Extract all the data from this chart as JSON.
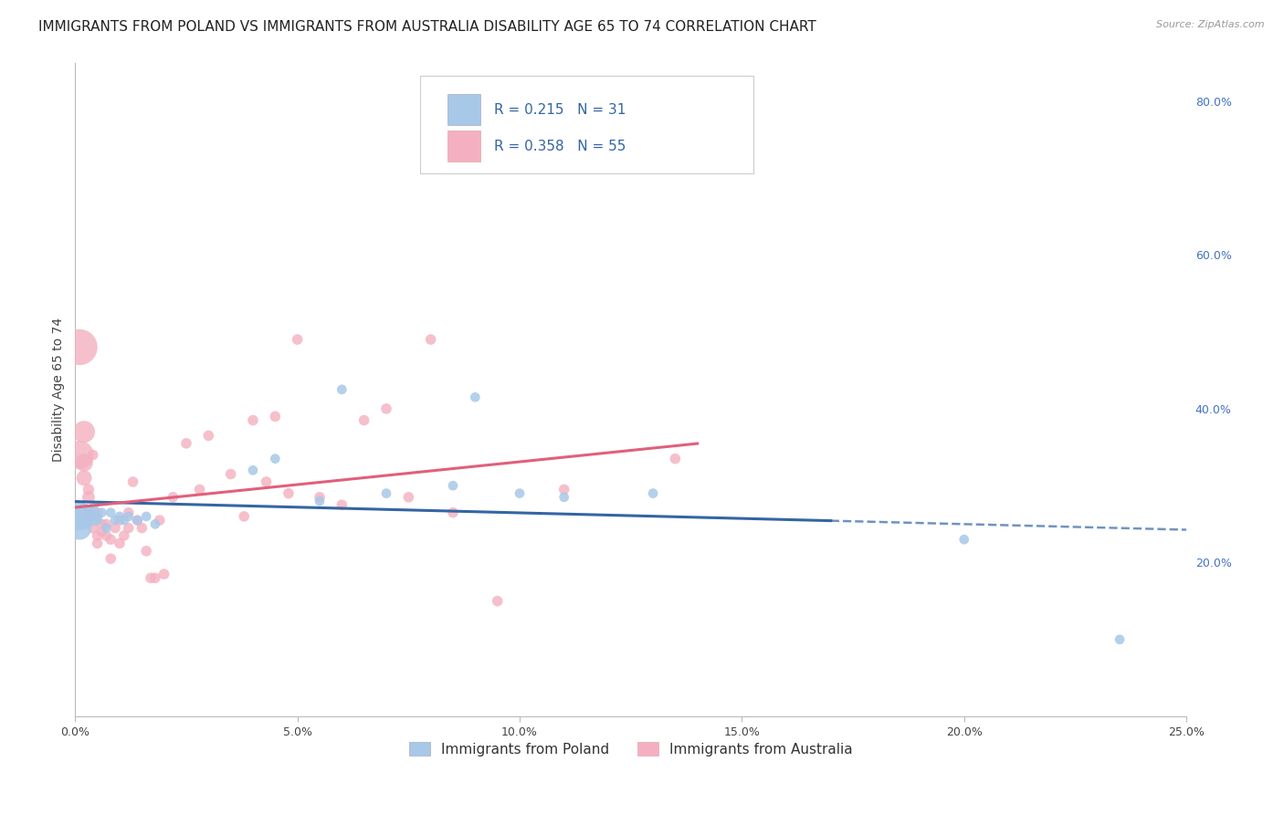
{
  "title": "IMMIGRANTS FROM POLAND VS IMMIGRANTS FROM AUSTRALIA DISABILITY AGE 65 TO 74 CORRELATION CHART",
  "source": "Source: ZipAtlas.com",
  "ylabel": "Disability Age 65 to 74",
  "xlim": [
    0,
    0.25
  ],
  "ylim": [
    0,
    0.85
  ],
  "xticks": [
    0.0,
    0.05,
    0.1,
    0.15,
    0.2,
    0.25
  ],
  "xticklabels": [
    "0.0%",
    "5.0%",
    "10.0%",
    "15.0%",
    "20.0%",
    "25.0%"
  ],
  "yticks_right": [
    0.2,
    0.4,
    0.6,
    0.8
  ],
  "yticklabels_right": [
    "20.0%",
    "40.0%",
    "60.0%",
    "80.0%"
  ],
  "poland_color": "#a8c8e8",
  "poland_line_color": "#3465a4",
  "australia_color": "#f4b0c0",
  "australia_line_color": "#e0607a",
  "legend_poland_label": "Immigrants from Poland",
  "legend_australia_label": "Immigrants from Australia",
  "R_poland": 0.215,
  "N_poland": 31,
  "R_australia": 0.358,
  "N_australia": 55,
  "poland_x": [
    0.001,
    0.001,
    0.002,
    0.002,
    0.003,
    0.004,
    0.004,
    0.005,
    0.005,
    0.006,
    0.007,
    0.008,
    0.009,
    0.01,
    0.011,
    0.012,
    0.014,
    0.016,
    0.018,
    0.04,
    0.045,
    0.055,
    0.06,
    0.07,
    0.085,
    0.09,
    0.1,
    0.11,
    0.13,
    0.2,
    0.235
  ],
  "poland_y": [
    0.26,
    0.245,
    0.265,
    0.255,
    0.265,
    0.255,
    0.27,
    0.255,
    0.26,
    0.265,
    0.245,
    0.265,
    0.255,
    0.26,
    0.255,
    0.26,
    0.255,
    0.26,
    0.25,
    0.32,
    0.335,
    0.28,
    0.425,
    0.29,
    0.3,
    0.415,
    0.29,
    0.285,
    0.29,
    0.23,
    0.1
  ],
  "poland_sizes": [
    500,
    350,
    200,
    150,
    100,
    80,
    80,
    60,
    60,
    60,
    60,
    60,
    60,
    60,
    60,
    60,
    60,
    60,
    60,
    60,
    60,
    60,
    60,
    60,
    60,
    60,
    60,
    60,
    60,
    60,
    60
  ],
  "australia_x": [
    0.001,
    0.001,
    0.002,
    0.002,
    0.002,
    0.003,
    0.003,
    0.003,
    0.004,
    0.004,
    0.004,
    0.005,
    0.005,
    0.005,
    0.006,
    0.006,
    0.007,
    0.007,
    0.008,
    0.008,
    0.009,
    0.01,
    0.01,
    0.011,
    0.012,
    0.012,
    0.013,
    0.014,
    0.015,
    0.016,
    0.017,
    0.018,
    0.019,
    0.02,
    0.022,
    0.025,
    0.028,
    0.03,
    0.035,
    0.038,
    0.04,
    0.043,
    0.045,
    0.048,
    0.05,
    0.055,
    0.06,
    0.065,
    0.07,
    0.075,
    0.08,
    0.085,
    0.095,
    0.11,
    0.135
  ],
  "australia_y": [
    0.48,
    0.34,
    0.37,
    0.33,
    0.31,
    0.26,
    0.285,
    0.295,
    0.245,
    0.265,
    0.34,
    0.235,
    0.225,
    0.265,
    0.24,
    0.25,
    0.235,
    0.25,
    0.23,
    0.205,
    0.245,
    0.255,
    0.225,
    0.235,
    0.265,
    0.245,
    0.305,
    0.255,
    0.245,
    0.215,
    0.18,
    0.18,
    0.255,
    0.185,
    0.285,
    0.355,
    0.295,
    0.365,
    0.315,
    0.26,
    0.385,
    0.305,
    0.39,
    0.29,
    0.49,
    0.285,
    0.275,
    0.385,
    0.4,
    0.285,
    0.49,
    0.265,
    0.15,
    0.295,
    0.335
  ],
  "australia_sizes": [
    800,
    500,
    300,
    200,
    150,
    120,
    100,
    80,
    80,
    70,
    70,
    70,
    70,
    70,
    70,
    70,
    70,
    70,
    70,
    70,
    70,
    70,
    70,
    70,
    70,
    70,
    70,
    70,
    70,
    70,
    70,
    70,
    70,
    70,
    70,
    70,
    70,
    70,
    70,
    70,
    70,
    70,
    70,
    70,
    70,
    70,
    70,
    70,
    70,
    70,
    70,
    70,
    70,
    70,
    70
  ],
  "grid_color": "#dddddd",
  "background_color": "#ffffff",
  "title_fontsize": 11,
  "axis_label_fontsize": 10,
  "tick_fontsize": 9,
  "legend_fontsize": 11,
  "value_color": "#3465a4",
  "label_color": "#333333"
}
